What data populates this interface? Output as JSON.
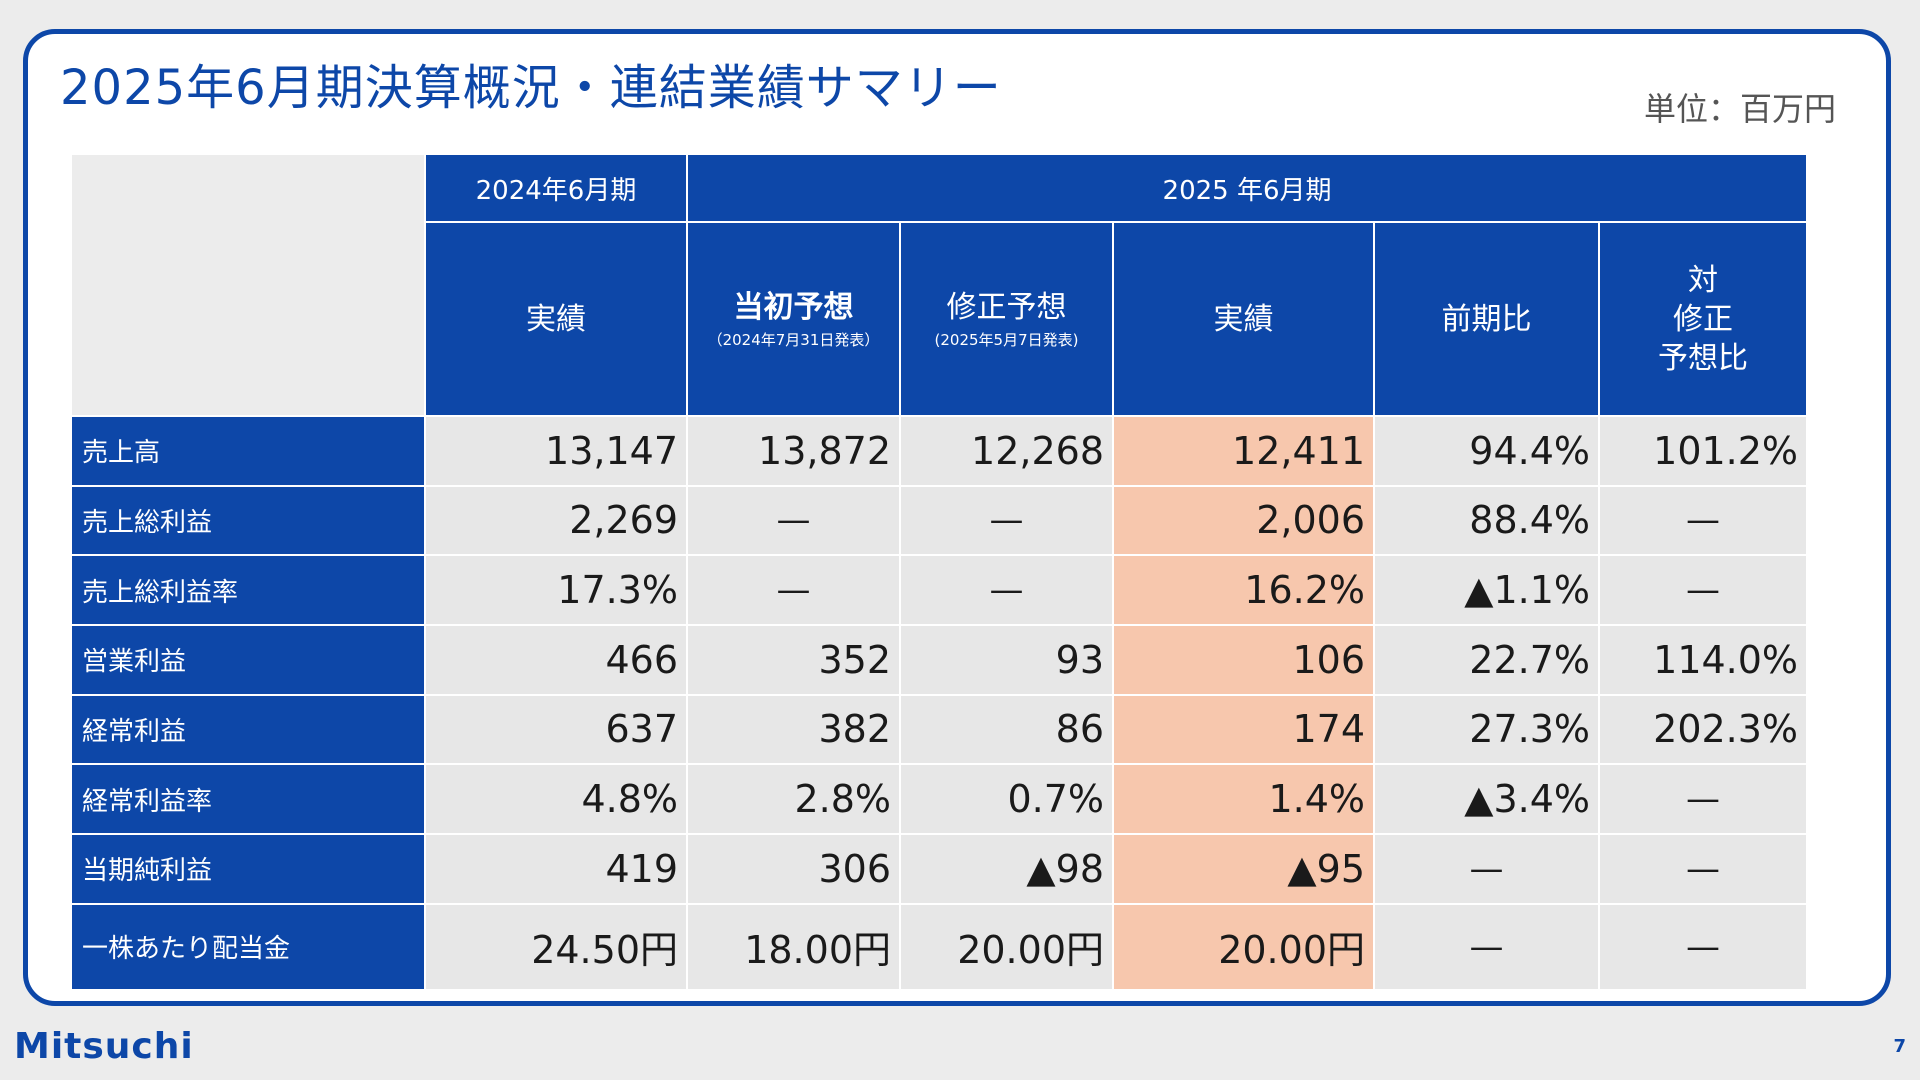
{
  "title": "2025年6月期決算概況・連結業績サマリー",
  "unit": "単位：百万円",
  "header": {
    "period_prev": "2024年6月期",
    "period_curr": "2025 年6月期",
    "columns": [
      {
        "label": "実績",
        "note": ""
      },
      {
        "label": "当初予想",
        "note": "（2024年7月31日発表）"
      },
      {
        "label": "修正予想",
        "note": "(2025年5月7日発表)"
      },
      {
        "label": "実績",
        "note": ""
      },
      {
        "label": "前期比",
        "note": ""
      },
      {
        "label": "対\n修正\n予想比",
        "note": ""
      }
    ]
  },
  "rows": [
    {
      "label": "売上高",
      "values": [
        "13,147",
        "13,872",
        "12,268",
        "12,411",
        "94.4%",
        "101.2%"
      ]
    },
    {
      "label": "売上総利益",
      "values": [
        "2,269",
        "—",
        "—",
        "2,006",
        "88.4%",
        "—"
      ]
    },
    {
      "label": "売上総利益率",
      "values": [
        "17.3%",
        "—",
        "—",
        "16.2%",
        "▲1.1%",
        "—"
      ]
    },
    {
      "label": "営業利益",
      "values": [
        "466",
        "352",
        "93",
        "106",
        "22.7%",
        "114.0%"
      ]
    },
    {
      "label": "経常利益",
      "values": [
        "637",
        "382",
        "86",
        "174",
        "27.3%",
        "202.3%"
      ]
    },
    {
      "label": "経常利益率",
      "values": [
        "4.8%",
        "2.8%",
        "0.7%",
        "1.4%",
        "▲3.4%",
        "—"
      ]
    },
    {
      "label": "当期純利益",
      "values": [
        "419",
        "306",
        "▲98",
        "▲95",
        "—",
        "—"
      ]
    },
    {
      "label": "一株あたり配当金",
      "values": [
        "24.50円",
        "18.00円",
        "20.00円",
        "20.00円",
        "—",
        "—"
      ]
    }
  ],
  "footer": {
    "logo": "Mitsuchi",
    "page_number": "7"
  },
  "colors": {
    "primary": "#0d47a8",
    "highlight": "#f7c7ad",
    "cell": "#e7e7e7",
    "background": "#ececec"
  }
}
